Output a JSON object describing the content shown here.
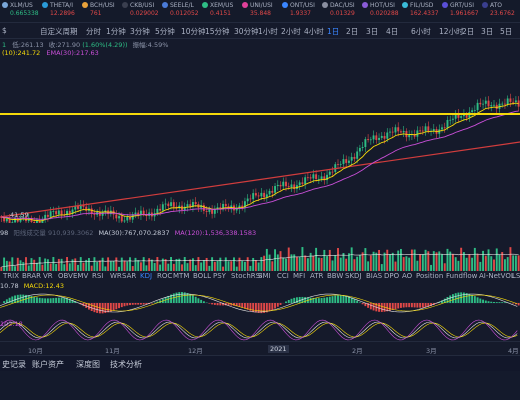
{
  "ticker": [
    {
      "name": "XLM/US",
      "price": "0.665338",
      "green": true,
      "icon_color": "#7aa7d8"
    },
    {
      "name": "THETA/I",
      "price": "12.2896",
      "green": false,
      "icon_color": "#2a9bd8"
    },
    {
      "name": "BCH/USI",
      "price": "761",
      "green": false,
      "icon_color": "#e9a23b"
    },
    {
      "name": "CKB/USI",
      "price": "0.029002",
      "green": false,
      "icon_color": "#3a3f4f"
    },
    {
      "name": "SEELE/L",
      "price": "0.012052",
      "green": false,
      "icon_color": "#4a7bd8"
    },
    {
      "name": "XEM/US",
      "price": "0.4151",
      "green": false,
      "icon_color": "#2ebd85"
    },
    {
      "name": "UNI/USI",
      "price": "35.848",
      "green": false,
      "icon_color": "#e0419a"
    },
    {
      "name": "ONT/USI",
      "price": "1.9337",
      "green": false,
      "icon_color": "#3a86ff"
    },
    {
      "name": "DAC/USI",
      "price": "0.01329",
      "green": false,
      "icon_color": "#8a8fa0"
    },
    {
      "name": "HOT/USI",
      "price": "0.020288",
      "green": false,
      "icon_color": "#8a5cd8"
    },
    {
      "name": "FIL/USD",
      "price": "162.4337",
      "green": false,
      "icon_color": "#3abbd8"
    },
    {
      "name": "GRT/USI",
      "price": "1.961667",
      "green": false,
      "icon_color": "#5a4fd8"
    },
    {
      "name": "ATO",
      "price": "23.6762",
      "green": false,
      "icon_color": "#3a3f8f"
    }
  ],
  "intervals": [
    "$",
    "自定义周期",
    "分时",
    "1分钟",
    "3分钟",
    "5分钟",
    "10分钟",
    "15分钟",
    "30分钟",
    "1小时",
    "2小时",
    "4小时",
    "1日",
    "2日",
    "3日",
    "4日",
    "6小时",
    "12小时",
    "2日",
    "3日",
    "5日",
    "周K",
    "月K"
  ],
  "active_interval": "1日",
  "info_row1": {
    "prefix": "1",
    "low": "低:261.13",
    "close": "收:271.90",
    "change": "(1.60%(4.29))",
    "amp": "振幅:4.59%"
  },
  "info_row2": {
    "ema": "(10):241.72",
    "ema30": "EMA(30):217.63"
  },
  "price_low_label": "41.59",
  "vol_label": {
    "prefix": "98",
    "name": "阳线成交量",
    "v1": "910,939.3062",
    "ma30": "MA(30):767,070.2837",
    "ma120": "MA(120):1,536,338.1583"
  },
  "macd_label": {
    "a": "10.78",
    "b": "MACD:12.43"
  },
  "kdj_label": "102.18",
  "tabs": [
    "TRIX",
    "BRAR",
    "VR",
    "OBV",
    "EMV",
    "RSI",
    "WR",
    "SAR",
    "KDJ",
    "ROC",
    "MTM",
    "BOLL",
    "PSY",
    "StochRSI",
    "SMI",
    "CCI",
    "MFI",
    "ATR",
    "BBW",
    "SKDJ",
    "BIAS",
    "DPO",
    "AO",
    "Position",
    "Fundflow",
    "AI-NetVOL",
    "LSUR"
  ],
  "active_tab": "KDJ",
  "xaxis": [
    {
      "label": "10月",
      "hl": false
    },
    {
      "label": "11月",
      "hl": false
    },
    {
      "label": "12月",
      "hl": false
    },
    {
      "label": "2021",
      "hl": true
    },
    {
      "label": "2月",
      "hl": false
    },
    {
      "label": "3月",
      "hl": false
    },
    {
      "label": "4月",
      "hl": false
    }
  ],
  "bottom_tabs": [
    "史记录",
    "账户资产",
    "深度图",
    "技术分析"
  ],
  "colors": {
    "up": "#2ebd85",
    "down": "#e04848",
    "accent": "#3a86ff",
    "yellow": "#f5d90a",
    "trend": "#d23d3d"
  }
}
